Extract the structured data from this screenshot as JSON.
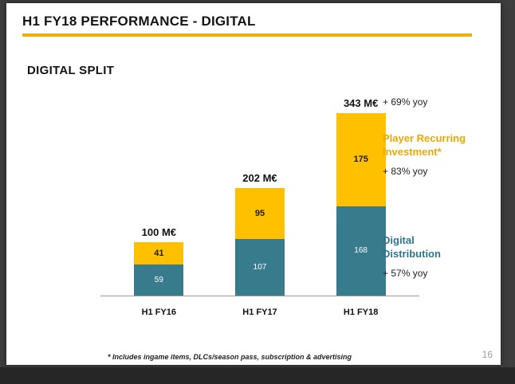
{
  "slide": {
    "header_title": "H1 FY18 PERFORMANCE - DIGITAL",
    "section_title": "DIGITAL SPLIT",
    "footnote": "* Includes ingame items, DLCs/season pass, subscription & advertising",
    "page_number": "16"
  },
  "colors": {
    "header_rule": "#EDB200",
    "app_background": "#3D3D3D",
    "slide_background": "#FFFFFF"
  },
  "chart_data": {
    "type": "bar",
    "stacked": true,
    "title": "DIGITAL SPLIT",
    "categories": [
      "H1 FY16",
      "H1 FY17",
      "H1 FY18"
    ],
    "series": [
      {
        "name": "Digital Distribution",
        "values": [
          59,
          107,
          168
        ],
        "color": "#377B8C",
        "text_color": "#2E7590",
        "yoy": "+ 57% yoy"
      },
      {
        "name": "Player Recurring Investment*",
        "values": [
          41,
          95,
          175
        ],
        "color": "#FFC000",
        "text_color": "#EDA800",
        "yoy": "+ 83% yoy"
      }
    ],
    "totals": [
      "100 M€",
      "202 M€",
      "343 M€"
    ],
    "total_values": [
      100,
      202,
      343
    ],
    "total_yoy": "+ 69% yoy",
    "ylim": [
      0,
      343
    ],
    "grid": false,
    "legend_position": "right-annotations"
  }
}
